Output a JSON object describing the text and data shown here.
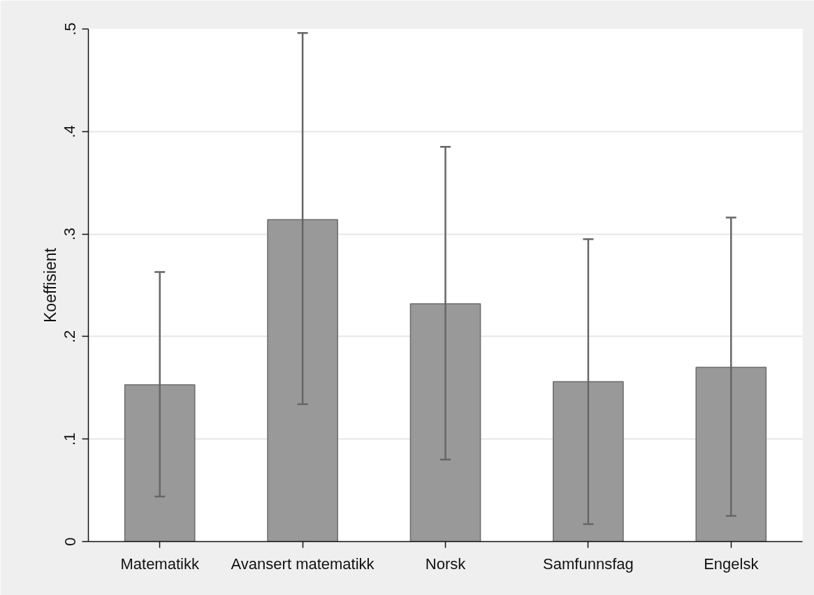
{
  "chart_data": {
    "type": "bar",
    "ylabel": "Koeffisient",
    "categories": [
      "Matematikk",
      "Avansert matematikk",
      "Norsk",
      "Samfunnsfag",
      "Engelsk"
    ],
    "values": [
      0.153,
      0.314,
      0.232,
      0.156,
      0.17
    ],
    "color": "#999999",
    "errors": [
      [
        0.044,
        0.263
      ],
      [
        0.134,
        0.496
      ],
      [
        0.08,
        0.385
      ],
      [
        0.017,
        0.295
      ],
      [
        0.025,
        0.316
      ]
    ],
    "ylim": [
      0,
      0.5
    ],
    "yticks": [
      0,
      {
        "value": 0.1,
        "label": ".1"
      },
      {
        "value": 0.2,
        "label": ".2"
      },
      {
        "value": 0.3,
        "label": ".3"
      },
      {
        "value": 0.4,
        "label": ".4"
      },
      {
        "value": 0.5,
        "label": ".5"
      }
    ],
    "grid": "y"
  }
}
